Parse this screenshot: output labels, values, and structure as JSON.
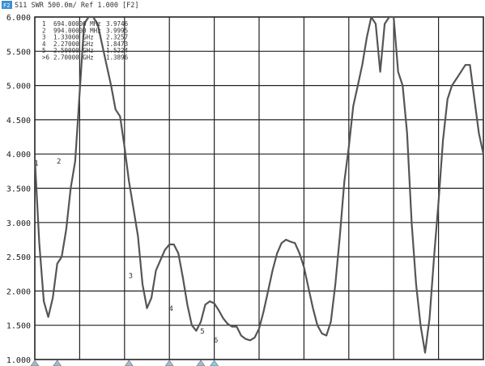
{
  "header": {
    "badge": "F2",
    "text": "S11 SWR 500.0m/ Ref 1.000 [F2]"
  },
  "chart_data": {
    "type": "line",
    "title": "",
    "xlabel": "",
    "ylabel": "",
    "ylim": [
      1.0,
      6.0
    ],
    "xlim": [
      0,
      100
    ],
    "y_ticks": [
      "6.000",
      "5.500",
      "5.000",
      "4.500",
      "4.000",
      "3.500",
      "3.000",
      "2.500",
      "2.000",
      "1.500",
      "1.000"
    ],
    "grid": true,
    "series": [
      {
        "values": [
          [
            0,
            3.95
          ],
          [
            1,
            2.7
          ],
          [
            2,
            1.85
          ],
          [
            3,
            1.62
          ],
          [
            4,
            1.9
          ],
          [
            5,
            2.4
          ],
          [
            6,
            2.5
          ],
          [
            7,
            2.9
          ],
          [
            8,
            3.5
          ],
          [
            9,
            3.9
          ],
          [
            10,
            4.9
          ],
          [
            11,
            5.9
          ],
          [
            12,
            6.0
          ],
          [
            13,
            6.0
          ],
          [
            14,
            5.9
          ],
          [
            15,
            5.6
          ],
          [
            16,
            5.3
          ],
          [
            17,
            5.0
          ],
          [
            18,
            4.65
          ],
          [
            19,
            4.55
          ],
          [
            20,
            4.1
          ],
          [
            21,
            3.6
          ],
          [
            22,
            3.2
          ],
          [
            23,
            2.8
          ],
          [
            24,
            2.1
          ],
          [
            25,
            1.75
          ],
          [
            26,
            1.9
          ],
          [
            27,
            2.3
          ],
          [
            28,
            2.45
          ],
          [
            29,
            2.6
          ],
          [
            30,
            2.68
          ],
          [
            31,
            2.68
          ],
          [
            32,
            2.55
          ],
          [
            33,
            2.2
          ],
          [
            34,
            1.8
          ],
          [
            35,
            1.5
          ],
          [
            36,
            1.42
          ],
          [
            37,
            1.55
          ],
          [
            38,
            1.8
          ],
          [
            39,
            1.85
          ],
          [
            40,
            1.82
          ],
          [
            41,
            1.72
          ],
          [
            42,
            1.6
          ],
          [
            43,
            1.52
          ],
          [
            44,
            1.48
          ],
          [
            45,
            1.48
          ],
          [
            46,
            1.35
          ],
          [
            47,
            1.3
          ],
          [
            48,
            1.28
          ],
          [
            49,
            1.32
          ],
          [
            50,
            1.45
          ],
          [
            51,
            1.7
          ],
          [
            52,
            2.0
          ],
          [
            53,
            2.3
          ],
          [
            54,
            2.55
          ],
          [
            55,
            2.7
          ],
          [
            56,
            2.75
          ],
          [
            57,
            2.72
          ],
          [
            58,
            2.7
          ],
          [
            59,
            2.55
          ],
          [
            60,
            2.35
          ],
          [
            61,
            2.05
          ],
          [
            62,
            1.75
          ],
          [
            63,
            1.5
          ],
          [
            64,
            1.38
          ],
          [
            65,
            1.35
          ],
          [
            66,
            1.55
          ],
          [
            67,
            2.1
          ],
          [
            68,
            2.8
          ],
          [
            69,
            3.6
          ],
          [
            70,
            4.1
          ],
          [
            71,
            4.7
          ],
          [
            72,
            5.0
          ],
          [
            73,
            5.3
          ],
          [
            74,
            5.7
          ],
          [
            75,
            6.0
          ],
          [
            76,
            5.9
          ],
          [
            77,
            5.2
          ],
          [
            78,
            5.9
          ],
          [
            79,
            6.0
          ],
          [
            80,
            6.0
          ],
          [
            81,
            5.2
          ],
          [
            82,
            5.0
          ],
          [
            83,
            4.3
          ],
          [
            84,
            3.0
          ],
          [
            85,
            2.1
          ],
          [
            86,
            1.5
          ],
          [
            87,
            1.1
          ],
          [
            88,
            1.6
          ],
          [
            89,
            2.5
          ],
          [
            90,
            3.3
          ],
          [
            91,
            4.2
          ],
          [
            92,
            4.8
          ],
          [
            93,
            5.0
          ],
          [
            94,
            5.1
          ],
          [
            95,
            5.2
          ],
          [
            96,
            5.3
          ],
          [
            97,
            5.3
          ],
          [
            98,
            4.8
          ],
          [
            99,
            4.3
          ],
          [
            100,
            4.0
          ]
        ],
        "color": "#555555"
      }
    ],
    "marker_table": [
      {
        "id": "1",
        "freq": "694.00000 MHz",
        "value": "3.9746"
      },
      {
        "id": "2",
        "freq": "994.00000 MHz",
        "value": "3.9995"
      },
      {
        "id": "3",
        "freq": "1.33000 GHz",
        "value": "2.3257"
      },
      {
        "id": "4",
        "freq": "2.27000 GHz",
        "value": "1.8473"
      },
      {
        "id": "5",
        "freq": "2.50000 GHz",
        "value": "1.5224"
      },
      {
        "id": ">6",
        "freq": "2.70000 GHz",
        "value": "1.3896"
      }
    ],
    "markers": [
      {
        "label": "1",
        "x": 0,
        "y": 3.97,
        "color": "#a9b9c4"
      },
      {
        "label": "2",
        "x": 5,
        "y": 4.0,
        "color": "#a9b9c4"
      },
      {
        "label": "3",
        "x": 21,
        "y": 2.33,
        "color": "#a9b9c4"
      },
      {
        "label": "4",
        "x": 30,
        "y": 1.85,
        "color": "#a9b9c4"
      },
      {
        "label": "5",
        "x": 37,
        "y": 1.52,
        "color": "#a9b9c4"
      },
      {
        "label": "6",
        "x": 40,
        "y": 1.39,
        "color": "#7fd0e0"
      }
    ],
    "legend": "none"
  }
}
